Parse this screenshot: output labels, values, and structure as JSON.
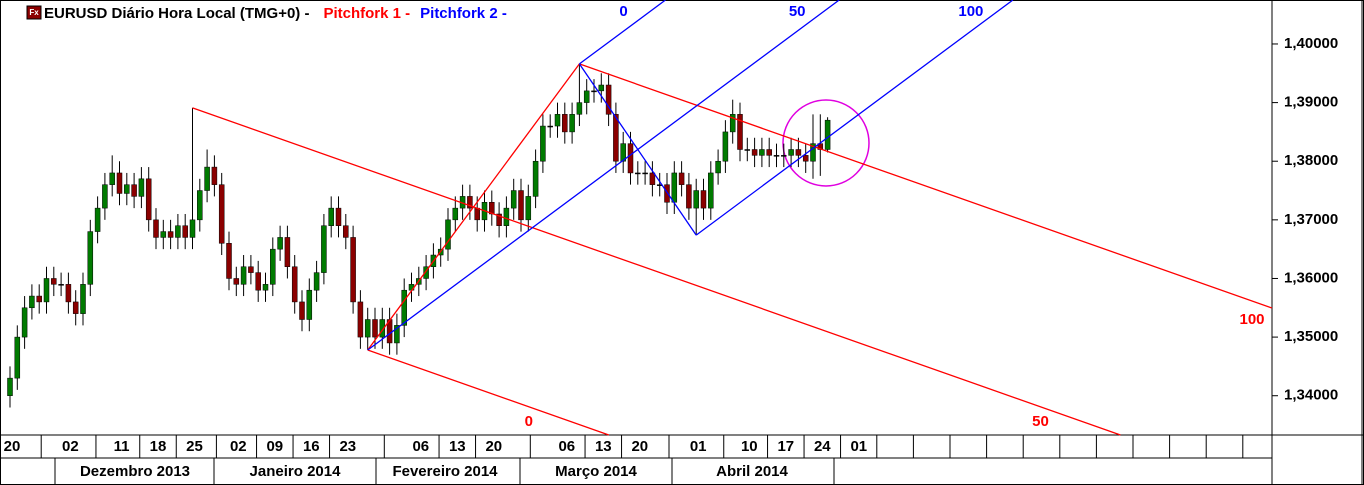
{
  "chart_data": {
    "type": "candlestick",
    "icon": "Fx",
    "title": "EURUSD Diário Hora Local (TMG+0)  -",
    "up_color": "#007a00",
    "down_color": "#8b0000",
    "ylim": [
      1.3333,
      1.4075
    ],
    "yticks": [
      {
        "value": 1.34,
        "label": "1,34000"
      },
      {
        "value": 1.35,
        "label": "1,35000"
      },
      {
        "value": 1.36,
        "label": "1,36000"
      },
      {
        "value": 1.37,
        "label": "1,37000"
      },
      {
        "value": 1.38,
        "label": "1,38000"
      },
      {
        "value": 1.39,
        "label": "1,39000"
      },
      {
        "value": 1.4,
        "label": "1,40000"
      }
    ],
    "categories": [
      "20",
      null,
      null,
      null,
      null,
      null,
      null,
      null,
      "02",
      null,
      null,
      null,
      null,
      null,
      null,
      "11",
      null,
      null,
      null,
      null,
      "18",
      null,
      null,
      null,
      null,
      "25",
      null,
      null,
      null,
      null,
      null,
      "02",
      null,
      null,
      null,
      null,
      "09",
      null,
      null,
      null,
      null,
      "16",
      null,
      null,
      null,
      null,
      "23",
      null,
      null,
      null,
      null,
      null,
      null,
      null,
      null,
      null,
      "06",
      null,
      null,
      null,
      null,
      "13",
      null,
      null,
      null,
      null,
      "20",
      null,
      null,
      null,
      null,
      null,
      null,
      null,
      null,
      null,
      "06",
      null,
      null,
      null,
      null,
      "13",
      null,
      null,
      null,
      null,
      "20",
      null,
      null,
      null,
      null,
      null,
      null,
      null,
      "01",
      null,
      null,
      null,
      null,
      null,
      null,
      "10",
      null,
      null,
      null,
      null,
      "17",
      null,
      null,
      null,
      null,
      "24",
      null,
      null,
      null,
      null,
      "01"
    ],
    "months": [
      "Dezembro 2013",
      "Janeiro 2014",
      "Fevereiro 2014",
      "Março 2014",
      "Abril 2014"
    ],
    "values": [
      [
        1.34,
        1.345,
        1.338,
        1.343
      ],
      [
        1.343,
        1.352,
        1.341,
        1.35
      ],
      [
        1.35,
        1.357,
        1.348,
        1.355
      ],
      [
        1.355,
        1.359,
        1.353,
        1.357
      ],
      [
        1.357,
        1.359,
        1.354,
        1.356
      ],
      [
        1.356,
        1.362,
        1.354,
        1.36
      ],
      [
        1.36,
        1.362,
        1.357,
        1.359
      ],
      [
        1.359,
        1.361,
        1.357,
        1.359
      ],
      [
        1.359,
        1.361,
        1.354,
        1.356
      ],
      [
        1.356,
        1.358,
        1.352,
        1.354
      ],
      [
        1.354,
        1.361,
        1.352,
        1.359
      ],
      [
        1.359,
        1.37,
        1.357,
        1.368
      ],
      [
        1.368,
        1.374,
        1.366,
        1.372
      ],
      [
        1.372,
        1.378,
        1.37,
        1.376
      ],
      [
        1.376,
        1.381,
        1.374,
        1.378
      ],
      [
        1.378,
        1.38,
        1.3725,
        1.3745
      ],
      [
        1.3745,
        1.378,
        1.3725,
        1.376
      ],
      [
        1.376,
        1.378,
        1.372,
        1.374
      ],
      [
        1.374,
        1.379,
        1.372,
        1.377
      ],
      [
        1.377,
        1.379,
        1.368,
        1.37
      ],
      [
        1.37,
        1.372,
        1.365,
        1.367
      ],
      [
        1.367,
        1.37,
        1.365,
        1.368
      ],
      [
        1.368,
        1.37,
        1.365,
        1.367
      ],
      [
        1.367,
        1.371,
        1.365,
        1.369
      ],
      [
        1.369,
        1.371,
        1.365,
        1.367
      ],
      [
        1.367,
        1.3891,
        1.365,
        1.37
      ],
      [
        1.37,
        1.377,
        1.368,
        1.375
      ],
      [
        1.375,
        1.382,
        1.373,
        1.379
      ],
      [
        1.379,
        1.381,
        1.374,
        1.376
      ],
      [
        1.376,
        1.378,
        1.364,
        1.366
      ],
      [
        1.366,
        1.368,
        1.358,
        1.36
      ],
      [
        1.36,
        1.362,
        1.357,
        1.359
      ],
      [
        1.359,
        1.364,
        1.357,
        1.362
      ],
      [
        1.362,
        1.364,
        1.359,
        1.361
      ],
      [
        1.361,
        1.363,
        1.356,
        1.358
      ],
      [
        1.358,
        1.361,
        1.356,
        1.359
      ],
      [
        1.359,
        1.367,
        1.357,
        1.365
      ],
      [
        1.365,
        1.369,
        1.363,
        1.367
      ],
      [
        1.367,
        1.369,
        1.36,
        1.362
      ],
      [
        1.362,
        1.364,
        1.354,
        1.356
      ],
      [
        1.356,
        1.358,
        1.351,
        1.353
      ],
      [
        1.353,
        1.36,
        1.351,
        1.358
      ],
      [
        1.358,
        1.363,
        1.356,
        1.361
      ],
      [
        1.361,
        1.371,
        1.359,
        1.369
      ],
      [
        1.369,
        1.374,
        1.367,
        1.372
      ],
      [
        1.372,
        1.374,
        1.367,
        1.369
      ],
      [
        1.369,
        1.371,
        1.365,
        1.367
      ],
      [
        1.367,
        1.369,
        1.354,
        1.356
      ],
      [
        1.356,
        1.358,
        1.348,
        1.35
      ],
      [
        1.35,
        1.355,
        1.3478,
        1.353
      ],
      [
        1.353,
        1.355,
        1.348,
        1.35
      ],
      [
        1.35,
        1.355,
        1.348,
        1.353
      ],
      [
        1.353,
        1.355,
        1.347,
        1.349
      ],
      [
        1.349,
        1.354,
        1.347,
        1.352
      ],
      [
        1.352,
        1.36,
        1.35,
        1.358
      ],
      [
        1.358,
        1.361,
        1.356,
        1.359
      ],
      [
        1.359,
        1.362,
        1.357,
        1.36
      ],
      [
        1.36,
        1.364,
        1.358,
        1.362
      ],
      [
        1.362,
        1.366,
        1.36,
        1.364
      ],
      [
        1.364,
        1.367,
        1.362,
        1.365
      ],
      [
        1.365,
        1.372,
        1.363,
        1.37
      ],
      [
        1.37,
        1.374,
        1.368,
        1.372
      ],
      [
        1.372,
        1.376,
        1.37,
        1.374
      ],
      [
        1.374,
        1.376,
        1.37,
        1.372
      ],
      [
        1.372,
        1.374,
        1.368,
        1.37
      ],
      [
        1.37,
        1.375,
        1.368,
        1.373
      ],
      [
        1.373,
        1.375,
        1.369,
        1.371
      ],
      [
        1.371,
        1.373,
        1.367,
        1.369
      ],
      [
        1.369,
        1.374,
        1.367,
        1.372
      ],
      [
        1.372,
        1.377,
        1.37,
        1.375
      ],
      [
        1.375,
        1.377,
        1.368,
        1.37
      ],
      [
        1.37,
        1.376,
        1.368,
        1.374
      ],
      [
        1.374,
        1.382,
        1.372,
        1.38
      ],
      [
        1.38,
        1.388,
        1.378,
        1.386
      ],
      [
        1.386,
        1.388,
        1.384,
        1.386
      ],
      [
        1.386,
        1.39,
        1.384,
        1.388
      ],
      [
        1.388,
        1.39,
        1.383,
        1.385
      ],
      [
        1.385,
        1.39,
        1.383,
        1.388
      ],
      [
        1.388,
        1.3966,
        1.386,
        1.39
      ],
      [
        1.39,
        1.394,
        1.388,
        1.392
      ],
      [
        1.392,
        1.394,
        1.39,
        1.392
      ],
      [
        1.392,
        1.395,
        1.39,
        1.393
      ],
      [
        1.393,
        1.395,
        1.386,
        1.388
      ],
      [
        1.388,
        1.39,
        1.378,
        1.38
      ],
      [
        1.38,
        1.385,
        1.378,
        1.383
      ],
      [
        1.383,
        1.385,
        1.376,
        1.378
      ],
      [
        1.378,
        1.38,
        1.376,
        1.378
      ],
      [
        1.378,
        1.38,
        1.376,
        1.378
      ],
      [
        1.378,
        1.38,
        1.374,
        1.376
      ],
      [
        1.376,
        1.378,
        1.374,
        1.376
      ],
      [
        1.376,
        1.378,
        1.371,
        1.373
      ],
      [
        1.373,
        1.38,
        1.371,
        1.378
      ],
      [
        1.378,
        1.38,
        1.374,
        1.376
      ],
      [
        1.376,
        1.378,
        1.37,
        1.372
      ],
      [
        1.372,
        1.377,
        1.3674,
        1.375
      ],
      [
        1.375,
        1.377,
        1.37,
        1.372
      ],
      [
        1.372,
        1.38,
        1.37,
        1.378
      ],
      [
        1.378,
        1.382,
        1.376,
        1.38
      ],
      [
        1.38,
        1.387,
        1.378,
        1.385
      ],
      [
        1.385,
        1.3905,
        1.383,
        1.388
      ],
      [
        1.388,
        1.39,
        1.38,
        1.382
      ],
      [
        1.382,
        1.384,
        1.38,
        1.382
      ],
      [
        1.382,
        1.384,
        1.379,
        1.381
      ],
      [
        1.381,
        1.384,
        1.379,
        1.382
      ],
      [
        1.382,
        1.384,
        1.379,
        1.381
      ],
      [
        1.381,
        1.383,
        1.379,
        1.381
      ],
      [
        1.381,
        1.383,
        1.379,
        1.381
      ],
      [
        1.381,
        1.384,
        1.379,
        1.382
      ],
      [
        1.382,
        1.384,
        1.379,
        1.381
      ],
      [
        1.381,
        1.383,
        1.378,
        1.38
      ],
      [
        1.38,
        1.388,
        1.377,
        1.383
      ],
      [
        1.383,
        1.388,
        1.3775,
        1.382
      ],
      [
        1.382,
        1.3875,
        1.3815,
        1.387
      ],
      null,
      null,
      null,
      null
    ],
    "pitchforks": [
      {
        "name": "Pitchfork 1 -",
        "color": "#ff0000",
        "points": [
          [
            25,
            1.3891
          ],
          [
            49,
            1.3478
          ],
          [
            78,
            1.3966
          ]
        ],
        "levels": [
          0,
          50,
          100
        ]
      },
      {
        "name": "Pitchfork 2 -",
        "color": "#0000ff",
        "points": [
          [
            49,
            1.3478
          ],
          [
            78,
            1.3966
          ],
          [
            94,
            1.3674
          ]
        ],
        "levels": [
          0,
          50,
          100
        ]
      }
    ]
  }
}
